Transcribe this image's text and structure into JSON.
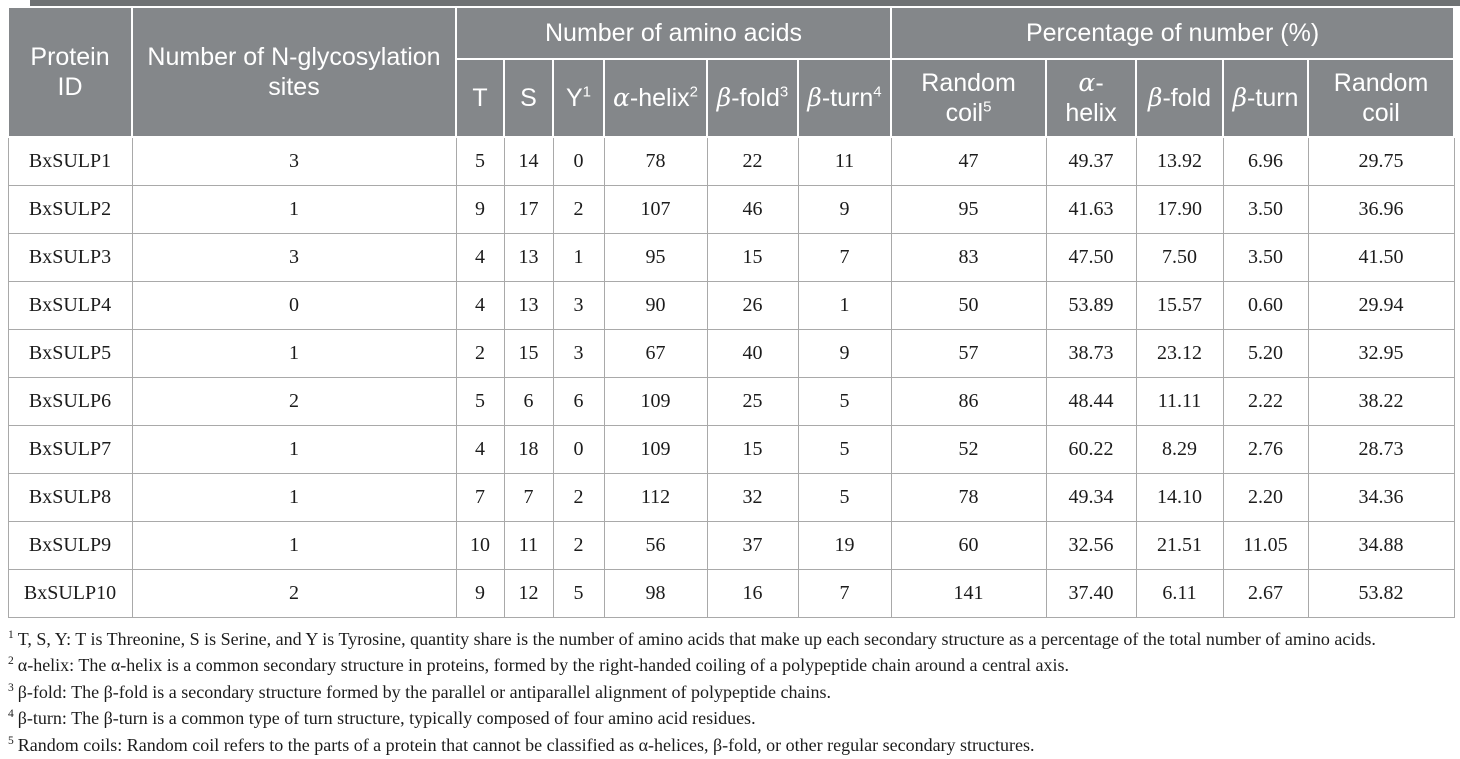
{
  "colors": {
    "header_bg": "#84878A",
    "header_text": "#FFFFFF",
    "top_rule": "#6F7274",
    "grid_border": "#A9A9A9",
    "body_text": "#1C1C1C"
  },
  "table": {
    "header": {
      "protein_id": "Protein ID",
      "n_glyc_sites": "Number of N-glycosylation sites",
      "group_amino": "Number of amino acids",
      "group_pct": "Percentage of number (%)",
      "sub": [
        {
          "greek": "",
          "text": "T",
          "sup": ""
        },
        {
          "greek": "",
          "text": "S",
          "sup": ""
        },
        {
          "greek": "",
          "text": "Y",
          "sup": "1"
        },
        {
          "greek": "α",
          "text": "-helix",
          "sup": "2"
        },
        {
          "greek": "β",
          "text": "-fold",
          "sup": "3"
        },
        {
          "greek": "β",
          "text": "-turn",
          "sup": "4"
        },
        {
          "greek": "",
          "text": "Random coil",
          "sup": "5"
        },
        {
          "greek": "α",
          "text": "-helix",
          "sup": ""
        },
        {
          "greek": "β",
          "text": "-fold",
          "sup": ""
        },
        {
          "greek": "β",
          "text": "-turn",
          "sup": ""
        },
        {
          "greek": "",
          "text": "Random coil",
          "sup": ""
        }
      ]
    },
    "rows": [
      [
        "BxSULP1",
        "3",
        "5",
        "14",
        "0",
        "78",
        "22",
        "11",
        "47",
        "49.37",
        "13.92",
        "6.96",
        "29.75"
      ],
      [
        "BxSULP2",
        "1",
        "9",
        "17",
        "2",
        "107",
        "46",
        "9",
        "95",
        "41.63",
        "17.90",
        "3.50",
        "36.96"
      ],
      [
        "BxSULP3",
        "3",
        "4",
        "13",
        "1",
        "95",
        "15",
        "7",
        "83",
        "47.50",
        "7.50",
        "3.50",
        "41.50"
      ],
      [
        "BxSULP4",
        "0",
        "4",
        "13",
        "3",
        "90",
        "26",
        "1",
        "50",
        "53.89",
        "15.57",
        "0.60",
        "29.94"
      ],
      [
        "BxSULP5",
        "1",
        "2",
        "15",
        "3",
        "67",
        "40",
        "9",
        "57",
        "38.73",
        "23.12",
        "5.20",
        "32.95"
      ],
      [
        "BxSULP6",
        "2",
        "5",
        "6",
        "6",
        "109",
        "25",
        "5",
        "86",
        "48.44",
        "11.11",
        "2.22",
        "38.22"
      ],
      [
        "BxSULP7",
        "1",
        "4",
        "18",
        "0",
        "109",
        "15",
        "5",
        "52",
        "60.22",
        "8.29",
        "2.76",
        "28.73"
      ],
      [
        "BxSULP8",
        "1",
        "7",
        "7",
        "2",
        "112",
        "32",
        "5",
        "78",
        "49.34",
        "14.10",
        "2.20",
        "34.36"
      ],
      [
        "BxSULP9",
        "1",
        "10",
        "11",
        "2",
        "56",
        "37",
        "19",
        "60",
        "32.56",
        "21.51",
        "11.05",
        "34.88"
      ],
      [
        "BxSULP10",
        "2",
        "9",
        "12",
        "5",
        "98",
        "16",
        "7",
        "141",
        "37.40",
        "6.11",
        "2.67",
        "53.82"
      ]
    ]
  },
  "footnotes": [
    {
      "sup": "1",
      "text": "T, S, Y: T is Threonine, S is Serine, and Y is Tyrosine, quantity share is the number of amino acids that make up each secondary structure as a percentage of the total number of amino acids."
    },
    {
      "sup": "2",
      "text": "α-helix: The α-helix is a common secondary structure in proteins, formed by the right-handed coiling of a polypeptide chain around a central axis."
    },
    {
      "sup": "3",
      "text": "β-fold: The β-fold is a secondary structure formed by the parallel or antiparallel alignment of polypeptide chains."
    },
    {
      "sup": "4",
      "text": "β-turn: The β-turn is a common type of turn structure, typically composed of four amino acid residues."
    },
    {
      "sup": "5",
      "text": "Random coils: Random coil refers to the parts of a protein that cannot be classified as α-helices, β-fold, or other regular secondary structures."
    }
  ]
}
